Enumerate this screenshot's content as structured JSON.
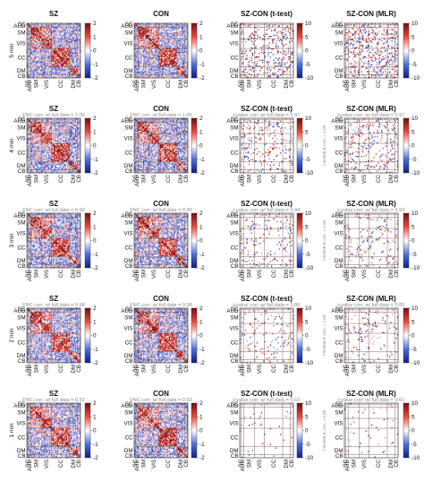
{
  "figure": {
    "columns": [
      "SZ",
      "CON",
      "SZ-CON (t-test)",
      "SZ-CON (MLR)"
    ],
    "domains": [
      "SC",
      "AUD",
      "SM",
      "VIS",
      "CC",
      "DM",
      "CB"
    ],
    "fnc_colorbar_ticks": [
      "2",
      "1",
      "0",
      "-1",
      "-2"
    ],
    "t_colorbar_ticks": [
      "10",
      "5",
      "0",
      "-5",
      "-10"
    ]
  },
  "chart_data": [
    {
      "type": "heatmap",
      "row": "5 min",
      "titles": [
        "SZ",
        "CON",
        "SZ-CON (t-test)",
        "SZ-CON (MLR)"
      ],
      "subtitles": [
        "",
        "",
        "",
        ""
      ],
      "side_label": "",
      "fnc_range": [
        -2,
        2
      ],
      "t_range": [
        -10,
        10
      ]
    },
    {
      "type": "heatmap",
      "row": "4 min",
      "titles": [
        "SZ",
        "CON",
        "SZ-CON (t-test)",
        "SZ-CON (MLR)"
      ],
      "subtitles": [
        "FNC corr. w/ full data = 1.00",
        "FNC corr. w/ full data = 1.00",
        "t-value corr. w/ full data = 0.97",
        "t-value corr. w/ full data = 0.97"
      ],
      "side_label": "t-test/MLR corr. = 1.00",
      "fnc_range": [
        -2,
        2
      ],
      "t_range": [
        -10,
        10
      ]
    },
    {
      "type": "heatmap",
      "row": "3 min",
      "titles": [
        "SZ",
        "CON",
        "SZ-CON (t-test)",
        "SZ-CON (MLR)"
      ],
      "subtitles": [
        "FNC corr. w/ full data = 0.99",
        "FNC corr. w/ full data = 0.99",
        "t-value corr. w/ full data = 0.94",
        "t-value corr. w/ full data = 0.93"
      ],
      "side_label": "t-test/MLR corr. = 1.00",
      "fnc_range": [
        -2,
        2
      ],
      "t_range": [
        -10,
        10
      ]
    },
    {
      "type": "heatmap",
      "row": "2 min",
      "titles": [
        "SZ",
        "CON",
        "SZ-CON (t-test)",
        "SZ-CON (MLR)"
      ],
      "subtitles": [
        "FNC corr. w/ full data = 0.98",
        "FNC corr. w/ full data = 0.98",
        "t-value corr. w/ full data = 0.86",
        "t-value corr. w/ full data = 0.85"
      ],
      "side_label": "t-test/MLR corr. = 1.00",
      "fnc_range": [
        -2,
        2
      ],
      "t_range": [
        -10,
        10
      ]
    },
    {
      "type": "heatmap",
      "row": "1 min",
      "titles": [
        "SZ",
        "CON",
        "SZ-CON (t-test)",
        "SZ-CON (MLR)"
      ],
      "subtitles": [
        "FNC corr. w/ full data = 0.93",
        "FNC corr. w/ full data = 0.93",
        "t-value corr. w/ full data = 0.62",
        "t-value corr. w/ full data = 0.61"
      ],
      "side_label": "t-test/MLR corr. = 0.99",
      "fnc_range": [
        -2,
        2
      ],
      "t_range": [
        -10,
        10
      ]
    }
  ]
}
